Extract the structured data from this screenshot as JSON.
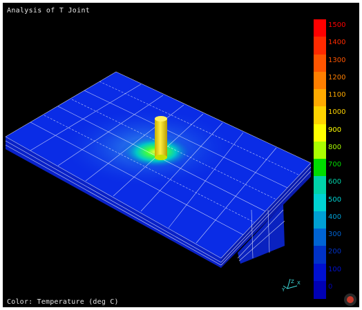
{
  "window": {
    "title": "Analysis of T Joint",
    "caption": "Color: Temperature (deg C)"
  },
  "legend": {
    "labels": [
      "1500",
      "1400",
      "1300",
      "1200",
      "1100",
      "1000",
      "900",
      "800",
      "700",
      "600",
      "500",
      "400",
      "300",
      "200",
      "100",
      "0"
    ],
    "colors": [
      "#ff0000",
      "#ff2a00",
      "#ff5500",
      "#ff7f00",
      "#ffaa00",
      "#ffd400",
      "#ffff00",
      "#aaff00",
      "#00dd00",
      "#00d4aa",
      "#00d4d4",
      "#00a0d4",
      "#0064d4",
      "#0032c8",
      "#0010d0",
      "#0000b4"
    ]
  },
  "model": {
    "plate_color": "#0a2ce6",
    "hot_spot_color": "#00ff60",
    "post_color": "#f0e020",
    "mesh_color": "#ffffff"
  },
  "icons": {
    "axis_triad": "axis-triad-icon",
    "corner": "record-icon"
  }
}
